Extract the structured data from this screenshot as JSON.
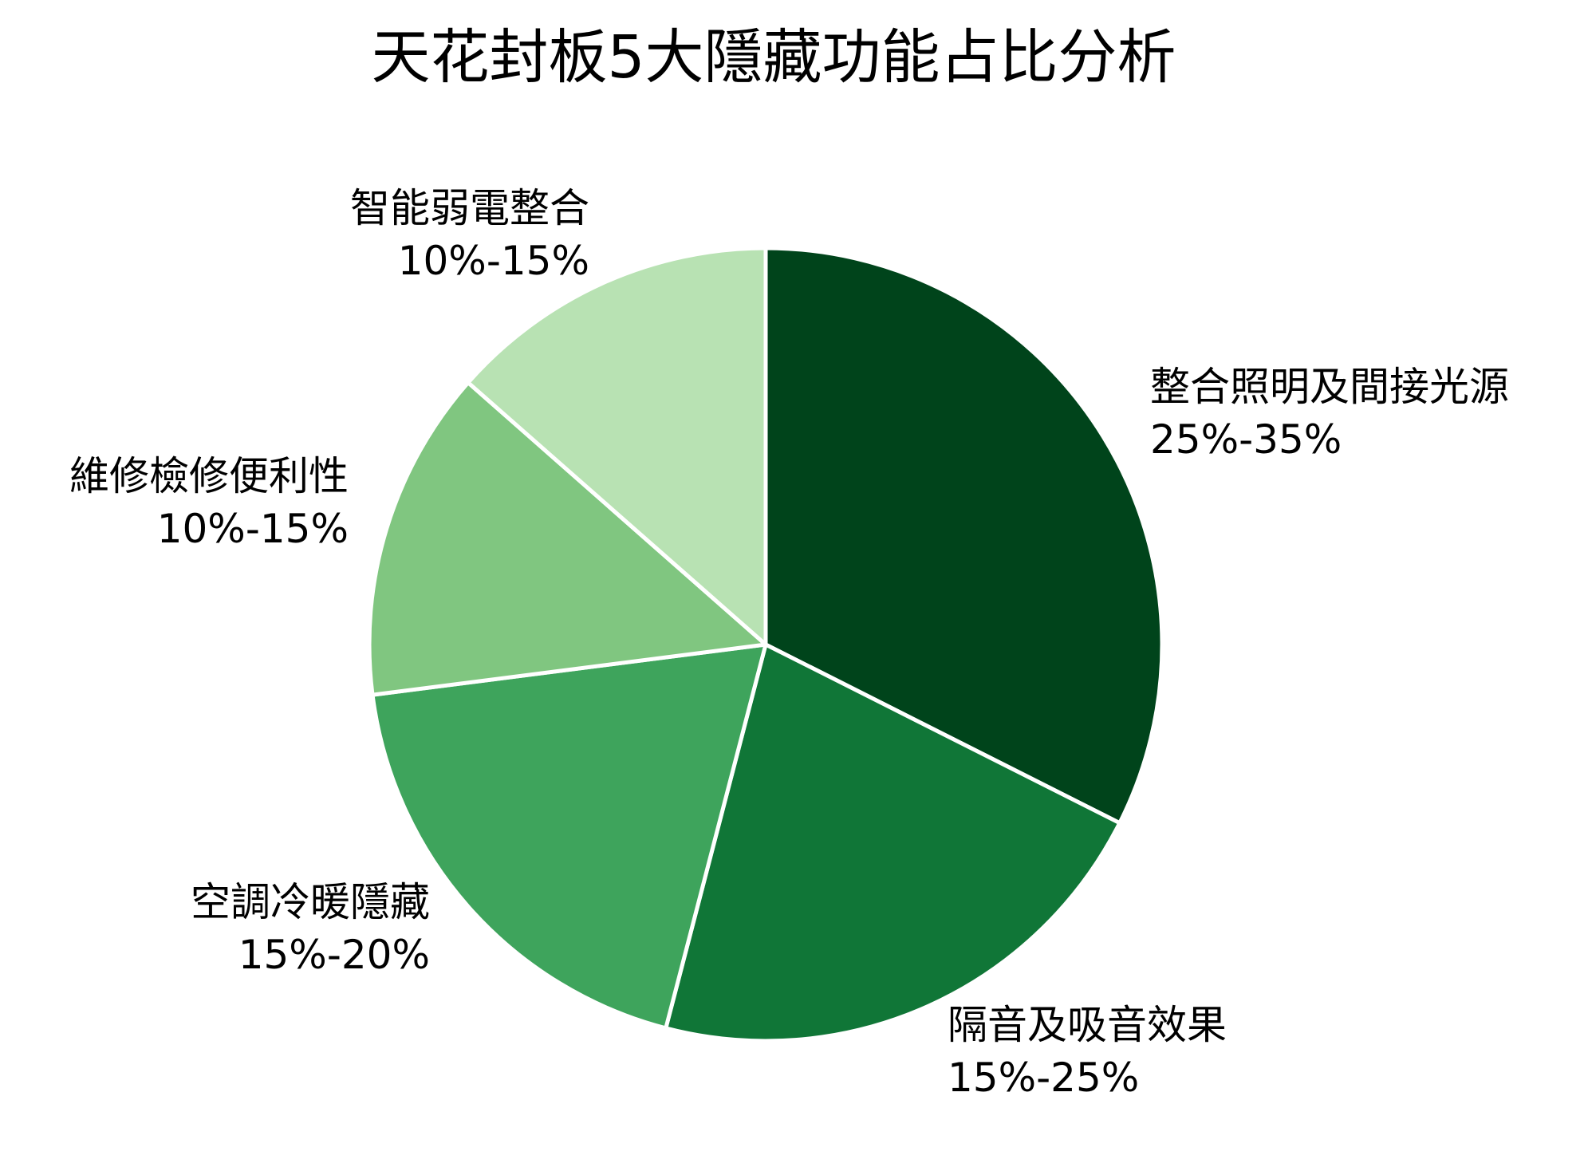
{
  "chart_data": {
    "type": "pie",
    "title": "天花封板5大隱藏功能占比分析",
    "start_angle": "top (90°), clockwise",
    "slice_border_color": "#ffffff",
    "slices": [
      {
        "label": "整合照明及間接光源",
        "range_text": "25%-35%",
        "value": 30,
        "color": "#00441b"
      },
      {
        "label": "隔音及吸音效果",
        "range_text": "15%-25%",
        "value": 20,
        "color": "#107637"
      },
      {
        "label": "空調冷暖隱藏",
        "range_text": "15%-20%",
        "value": 17.5,
        "color": "#3ea45c"
      },
      {
        "label": "維修檢修便利性",
        "range_text": "10%-15%",
        "value": 12.5,
        "color": "#80c680"
      },
      {
        "label": "智能弱電整合",
        "range_text": "10%-15%",
        "value": 12.5,
        "color": "#b8e2b3"
      }
    ],
    "legend": "none (labels placed outside slices)"
  }
}
